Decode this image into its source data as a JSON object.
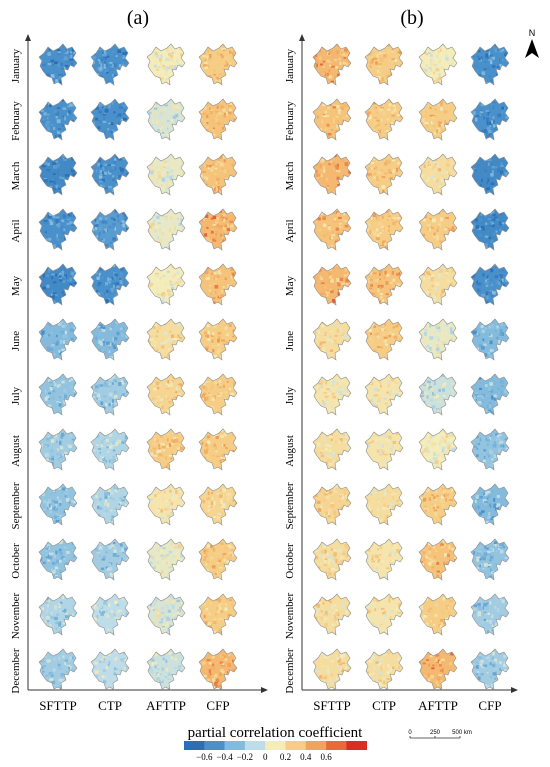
{
  "panels": [
    {
      "label": "(a)",
      "cells": {
        "SFTTP": [
          -0.5,
          -0.5,
          -0.55,
          -0.5,
          -0.55,
          -0.3,
          -0.25,
          -0.2,
          -0.25,
          -0.25,
          -0.15,
          -0.2
        ],
        "CTP": [
          -0.5,
          -0.5,
          -0.5,
          -0.45,
          -0.5,
          -0.3,
          -0.2,
          -0.15,
          -0.15,
          -0.2,
          -0.1,
          -0.1
        ],
        "AFTTP": [
          0.1,
          0.0,
          0.05,
          0.05,
          0.1,
          0.2,
          0.25,
          0.3,
          0.15,
          0.05,
          0.0,
          -0.05
        ],
        "CFP": [
          0.3,
          0.35,
          0.35,
          0.4,
          0.35,
          0.3,
          0.3,
          0.3,
          0.25,
          0.3,
          0.3,
          0.4
        ]
      }
    },
    {
      "label": "(b)",
      "cells": {
        "SFTTP": [
          0.4,
          0.35,
          0.4,
          0.35,
          0.4,
          0.2,
          0.15,
          0.2,
          0.25,
          0.2,
          0.2,
          0.2
        ],
        "CTP": [
          0.3,
          0.3,
          0.3,
          0.3,
          0.35,
          0.3,
          0.15,
          0.15,
          0.2,
          0.15,
          0.15,
          0.2
        ],
        "AFTTP": [
          0.1,
          0.3,
          0.2,
          0.3,
          0.2,
          0.05,
          -0.05,
          0.1,
          0.3,
          0.35,
          0.3,
          0.4
        ],
        "CFP": [
          -0.5,
          -0.5,
          -0.55,
          -0.55,
          -0.5,
          -0.3,
          -0.3,
          -0.25,
          -0.3,
          -0.25,
          -0.2,
          -0.2
        ]
      }
    }
  ],
  "months": [
    "January",
    "February",
    "March",
    "April",
    "May",
    "June",
    "July",
    "August",
    "September",
    "October",
    "November",
    "December"
  ],
  "columns": [
    "SFTTP",
    "CTP",
    "AFTTP",
    "CFP"
  ],
  "legend": {
    "title": "partial correlation coefficient",
    "ticks": [
      "−0.6",
      "−0.4",
      "−0.2",
      "0",
      "0.2",
      "0.4",
      "0.6"
    ],
    "colors": [
      "#2c6fb5",
      "#4a91cc",
      "#84bbdc",
      "#bfdde8",
      "#f4ecb9",
      "#f6cd85",
      "#f1a35a",
      "#e66b35",
      "#d7301f"
    ]
  },
  "scale_bar": {
    "labels": [
      "0",
      "250",
      "500 km"
    ]
  },
  "north_arrow": {
    "label": "N"
  },
  "colors": {
    "outline": "#8c8c8c",
    "axis": "#333333",
    "neg_strong": "#2c6fb5",
    "neutral": "#f4ecb9",
    "pos_strong": "#d7301f"
  }
}
